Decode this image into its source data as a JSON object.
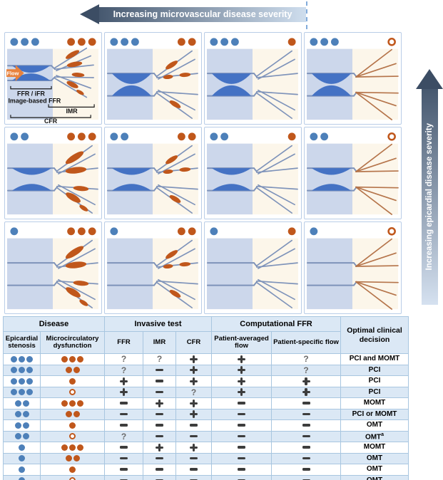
{
  "top_arrow": {
    "label": "Increasing microvascular disease severity"
  },
  "right_arrow": {
    "label": "Increasing epicardial disease severity"
  },
  "first_panel_labels": {
    "flow": "Flow",
    "ffr_ifr": "FFR / iFR",
    "image_based_ffr": "Image-based FFR",
    "imr": "IMR",
    "cfr": "CFR"
  },
  "panels": [
    {
      "row": 1,
      "col": 1,
      "epicardial_dots": 3,
      "micro_dots": 3,
      "micro_open": false,
      "stenosis": "severe",
      "microvasculature": "plaques-heavy",
      "annotated": true
    },
    {
      "row": 1,
      "col": 2,
      "epicardial_dots": 3,
      "micro_dots": 2,
      "micro_open": false,
      "stenosis": "severe",
      "microvasculature": "plaques-mild",
      "annotated": false
    },
    {
      "row": 1,
      "col": 3,
      "epicardial_dots": 3,
      "micro_dots": 1,
      "micro_open": false,
      "stenosis": "severe",
      "microvasculature": "normal",
      "annotated": false
    },
    {
      "row": 1,
      "col": 4,
      "epicardial_dots": 3,
      "micro_dots": 1,
      "micro_open": true,
      "stenosis": "severe",
      "microvasculature": "dilated",
      "annotated": false
    },
    {
      "row": 2,
      "col": 1,
      "epicardial_dots": 2,
      "micro_dots": 3,
      "micro_open": false,
      "stenosis": "moderate",
      "microvasculature": "plaques-heavy",
      "annotated": false
    },
    {
      "row": 2,
      "col": 2,
      "epicardial_dots": 2,
      "micro_dots": 2,
      "micro_open": false,
      "stenosis": "moderate",
      "microvasculature": "plaques-mild",
      "annotated": false
    },
    {
      "row": 2,
      "col": 3,
      "epicardial_dots": 2,
      "micro_dots": 1,
      "micro_open": false,
      "stenosis": "moderate",
      "microvasculature": "normal",
      "annotated": false
    },
    {
      "row": 2,
      "col": 4,
      "epicardial_dots": 2,
      "micro_dots": 1,
      "micro_open": true,
      "stenosis": "moderate",
      "microvasculature": "dilated",
      "annotated": false
    },
    {
      "row": 3,
      "col": 1,
      "epicardial_dots": 1,
      "micro_dots": 3,
      "micro_open": false,
      "stenosis": "none",
      "microvasculature": "plaques-heavy",
      "annotated": false
    },
    {
      "row": 3,
      "col": 2,
      "epicardial_dots": 1,
      "micro_dots": 2,
      "micro_open": false,
      "stenosis": "none",
      "microvasculature": "plaques-mild",
      "annotated": false
    },
    {
      "row": 3,
      "col": 3,
      "epicardial_dots": 1,
      "micro_dots": 1,
      "micro_open": false,
      "stenosis": "none",
      "microvasculature": "normal",
      "annotated": false
    },
    {
      "row": 3,
      "col": 4,
      "epicardial_dots": 1,
      "micro_dots": 1,
      "micro_open": true,
      "stenosis": "none",
      "microvasculature": "dilated",
      "annotated": false
    }
  ],
  "table": {
    "groups": [
      "Disease",
      "Invasive test",
      "Computational FFR",
      "Optimal clinical decision"
    ],
    "subheaders": [
      "Epicardial stenosis",
      "Microcirculatory dysfunction",
      "FFR",
      "IMR",
      "CFR",
      "Patient-averaged flow",
      "Patient-specific flow"
    ],
    "rows": [
      {
        "epicardial": 3,
        "micro": 3,
        "micro_open": false,
        "ffr": "?",
        "imr": "?",
        "cfr": "+",
        "patient_averaged": "+",
        "patient_specific": "?",
        "decision": "PCI and MOMT",
        "decision_sup": ""
      },
      {
        "epicardial": 3,
        "micro": 2,
        "micro_open": false,
        "ffr": "?",
        "imr": "−",
        "cfr": "+",
        "patient_averaged": "+",
        "patient_specific": "?",
        "decision": "PCI",
        "decision_sup": ""
      },
      {
        "epicardial": 3,
        "micro": 1,
        "micro_open": false,
        "ffr": "+",
        "imr": "−",
        "cfr": "+",
        "patient_averaged": "+",
        "patient_specific": "+",
        "decision": "PCI",
        "decision_sup": ""
      },
      {
        "epicardial": 3,
        "micro": 1,
        "micro_open": true,
        "ffr": "+",
        "imr": "−",
        "cfr": "?",
        "patient_averaged": "+",
        "patient_specific": "+",
        "decision": "PCI",
        "decision_sup": ""
      },
      {
        "epicardial": 2,
        "micro": 3,
        "micro_open": false,
        "ffr": "−",
        "imr": "+",
        "cfr": "+",
        "patient_averaged": "−",
        "patient_specific": "−",
        "decision": "MOMT",
        "decision_sup": ""
      },
      {
        "epicardial": 2,
        "micro": 2,
        "micro_open": false,
        "ffr": "−",
        "imr": "−",
        "cfr": "+",
        "patient_averaged": "−",
        "patient_specific": "−",
        "decision": "PCI or MOMT",
        "decision_sup": ""
      },
      {
        "epicardial": 2,
        "micro": 1,
        "micro_open": false,
        "ffr": "−",
        "imr": "−",
        "cfr": "−",
        "patient_averaged": "−",
        "patient_specific": "−",
        "decision": "OMT",
        "decision_sup": ""
      },
      {
        "epicardial": 2,
        "micro": 1,
        "micro_open": true,
        "ffr": "?",
        "imr": "−",
        "cfr": "−",
        "patient_averaged": "−",
        "patient_specific": "−",
        "decision": "OMT",
        "decision_sup": "a"
      },
      {
        "epicardial": 1,
        "micro": 3,
        "micro_open": false,
        "ffr": "−",
        "imr": "+",
        "cfr": "+",
        "patient_averaged": "−",
        "patient_specific": "−",
        "decision": "MOMT",
        "decision_sup": ""
      },
      {
        "epicardial": 1,
        "micro": 2,
        "micro_open": false,
        "ffr": "−",
        "imr": "−",
        "cfr": "−",
        "patient_averaged": "−",
        "patient_specific": "−",
        "decision": "OMT",
        "decision_sup": ""
      },
      {
        "epicardial": 1,
        "micro": 1,
        "micro_open": false,
        "ffr": "−",
        "imr": "−",
        "cfr": "−",
        "patient_averaged": "−",
        "patient_specific": "−",
        "decision": "OMT",
        "decision_sup": ""
      },
      {
        "epicardial": 1,
        "micro": 1,
        "micro_open": true,
        "ffr": "−",
        "imr": "−",
        "cfr": "−",
        "patient_averaged": "−",
        "patient_specific": "−",
        "decision": "OMT",
        "decision_sup": ""
      }
    ]
  },
  "colors": {
    "blue": "#4d80b9",
    "orange": "#c0571b",
    "vessel": "#4472c4",
    "wall": "#7e93ba",
    "fan": "#b5744a",
    "panel_cream": "#fcf6ea",
    "panel_left": "#ccd7eb",
    "arrow_dark": "#3c4d64",
    "arrow_light": "#cfdeee",
    "table_alt_row": "#dbe8f5"
  }
}
